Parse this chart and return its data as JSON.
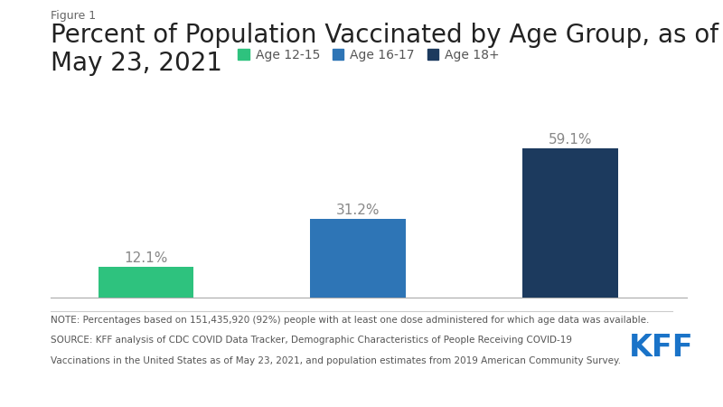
{
  "figure_label": "Figure 1",
  "title": "Percent of Population Vaccinated by Age Group, as of\nMay 23, 2021",
  "categories": [
    "Age 12-15",
    "Age 16-17",
    "Age 18+"
  ],
  "values": [
    12.1,
    31.2,
    59.1
  ],
  "bar_colors": [
    "#2ec27e",
    "#2e75b6",
    "#1c3a5e"
  ],
  "legend_labels": [
    "Age 12-15",
    "Age 16-17",
    "Age 18+"
  ],
  "legend_colors": [
    "#2ec27e",
    "#2e75b6",
    "#1c3a5e"
  ],
  "value_labels": [
    "12.1%",
    "31.2%",
    "59.1%"
  ],
  "note_line1": "NOTE: Percentages based on 151,435,920 (92%) people with at least one dose administered for which age data was available.",
  "note_line2": "SOURCE: KFF analysis of CDC COVID Data Tracker, Demographic Characteristics of People Receiving COVID-19",
  "note_line3": "Vaccinations in the United States as of May 23, 2021, and population estimates from 2019 American Community Survey.",
  "kff_color": "#1a73c8",
  "background_color": "#ffffff",
  "title_fontsize": 20,
  "figure_label_fontsize": 9,
  "bar_label_fontsize": 11,
  "legend_fontsize": 10,
  "note_fontsize": 7.5,
  "ylim": [
    0,
    68
  ]
}
